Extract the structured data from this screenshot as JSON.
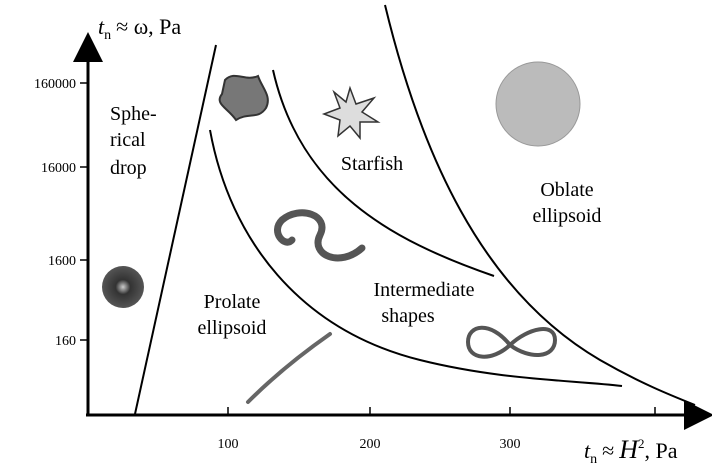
{
  "y_axis": {
    "label": {
      "var": "t",
      "sub": "n",
      "rest": "≈ ω, Pa"
    },
    "ticks": [
      "160000",
      "16000",
      "1600",
      "160"
    ]
  },
  "x_axis": {
    "label": {
      "var": "t",
      "sub": "n",
      "approx": "≈",
      "var2": "H",
      "sup": "2",
      "rest": ", Pa"
    },
    "ticks": [
      "100",
      "200",
      "300"
    ]
  },
  "regions": {
    "spherical_drop": [
      "Sphe-",
      "rical",
      "drop"
    ],
    "starfish": [
      "Starfish"
    ],
    "oblate_ellipsoid": [
      "Oblate",
      "ellipsoid"
    ],
    "prolate_ellipsoid": [
      "Prolate",
      "ellipsoid"
    ],
    "intermediate_shapes": [
      "Intermediate",
      "shapes"
    ]
  }
}
